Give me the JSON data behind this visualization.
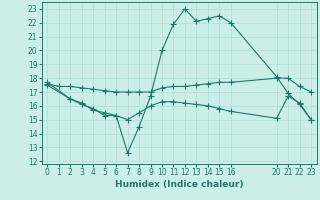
{
  "xlabel": "Humidex (Indice chaleur)",
  "background_color": "#cceee8",
  "grid_color": "#aaddd8",
  "line_color": "#1a7a6e",
  "xlim": [
    -0.5,
    23.5
  ],
  "ylim": [
    11.8,
    23.5
  ],
  "xticks": [
    0,
    1,
    2,
    3,
    4,
    5,
    6,
    7,
    8,
    9,
    10,
    11,
    12,
    13,
    14,
    15,
    16,
    20,
    21,
    22,
    23
  ],
  "yticks": [
    12,
    13,
    14,
    15,
    16,
    17,
    18,
    19,
    20,
    21,
    22,
    23
  ],
  "line1_x": [
    0,
    1,
    2,
    3,
    4,
    5,
    6,
    7,
    8,
    9,
    10,
    11,
    12,
    13,
    14,
    15,
    16,
    20,
    21,
    22,
    23
  ],
  "line1_y": [
    17.6,
    17.4,
    17.4,
    17.3,
    17.2,
    17.1,
    17.0,
    17.0,
    17.0,
    17.0,
    17.3,
    17.4,
    17.4,
    17.5,
    17.6,
    17.7,
    17.7,
    18.0,
    18.0,
    17.4,
    17.0
  ],
  "line2_x": [
    0,
    2,
    3,
    4,
    5,
    6,
    7,
    8,
    9,
    10,
    11,
    12,
    13,
    14,
    15,
    16,
    20,
    21,
    22,
    23
  ],
  "line2_y": [
    17.7,
    16.5,
    16.1,
    15.8,
    15.3,
    15.3,
    12.6,
    14.5,
    16.7,
    20.0,
    21.9,
    23.0,
    22.1,
    22.3,
    22.5,
    22.0,
    18.1,
    16.9,
    16.1,
    15.0
  ],
  "line3_x": [
    0,
    2,
    3,
    4,
    5,
    6,
    7,
    8,
    9,
    10,
    11,
    12,
    13,
    14,
    15,
    16,
    20,
    21,
    22,
    23
  ],
  "line3_y": [
    17.5,
    16.5,
    16.2,
    15.7,
    15.5,
    15.3,
    15.0,
    15.5,
    16.0,
    16.3,
    16.3,
    16.2,
    16.1,
    16.0,
    15.8,
    15.6,
    15.1,
    16.7,
    16.2,
    15.0
  ],
  "marker_size": 4,
  "linewidth": 0.8
}
